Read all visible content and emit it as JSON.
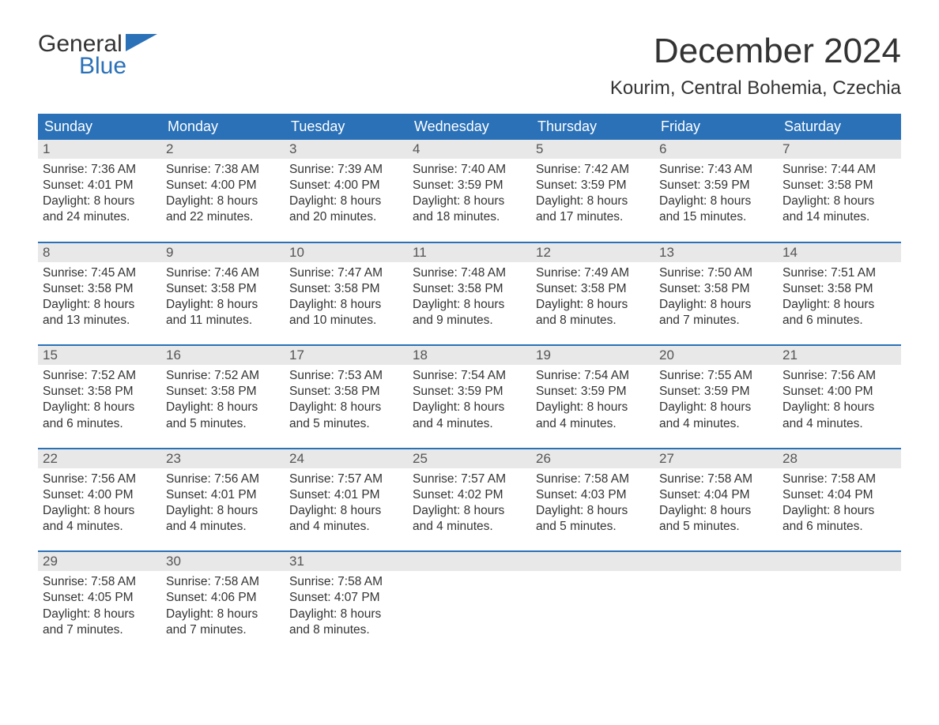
{
  "logo": {
    "word1": "General",
    "word2": "Blue",
    "icon_color": "#2a71b8"
  },
  "title": "December 2024",
  "location": "Kourim, Central Bohemia, Czechia",
  "colors": {
    "header_bg": "#2a71b8",
    "header_fg": "#ffffff",
    "daynum_bg": "#e8e8e8",
    "daynum_fg": "#555555",
    "body_fg": "#333333",
    "page_bg": "#ffffff"
  },
  "fonts": {
    "title_size": 44,
    "location_size": 24,
    "header_size": 18,
    "body_size": 15.5
  },
  "weekday_headers": [
    "Sunday",
    "Monday",
    "Tuesday",
    "Wednesday",
    "Thursday",
    "Friday",
    "Saturday"
  ],
  "weeks": [
    [
      {
        "n": "1",
        "sunrise": "Sunrise: 7:36 AM",
        "sunset": "Sunset: 4:01 PM",
        "d1": "Daylight: 8 hours",
        "d2": "and 24 minutes."
      },
      {
        "n": "2",
        "sunrise": "Sunrise: 7:38 AM",
        "sunset": "Sunset: 4:00 PM",
        "d1": "Daylight: 8 hours",
        "d2": "and 22 minutes."
      },
      {
        "n": "3",
        "sunrise": "Sunrise: 7:39 AM",
        "sunset": "Sunset: 4:00 PM",
        "d1": "Daylight: 8 hours",
        "d2": "and 20 minutes."
      },
      {
        "n": "4",
        "sunrise": "Sunrise: 7:40 AM",
        "sunset": "Sunset: 3:59 PM",
        "d1": "Daylight: 8 hours",
        "d2": "and 18 minutes."
      },
      {
        "n": "5",
        "sunrise": "Sunrise: 7:42 AM",
        "sunset": "Sunset: 3:59 PM",
        "d1": "Daylight: 8 hours",
        "d2": "and 17 minutes."
      },
      {
        "n": "6",
        "sunrise": "Sunrise: 7:43 AM",
        "sunset": "Sunset: 3:59 PM",
        "d1": "Daylight: 8 hours",
        "d2": "and 15 minutes."
      },
      {
        "n": "7",
        "sunrise": "Sunrise: 7:44 AM",
        "sunset": "Sunset: 3:58 PM",
        "d1": "Daylight: 8 hours",
        "d2": "and 14 minutes."
      }
    ],
    [
      {
        "n": "8",
        "sunrise": "Sunrise: 7:45 AM",
        "sunset": "Sunset: 3:58 PM",
        "d1": "Daylight: 8 hours",
        "d2": "and 13 minutes."
      },
      {
        "n": "9",
        "sunrise": "Sunrise: 7:46 AM",
        "sunset": "Sunset: 3:58 PM",
        "d1": "Daylight: 8 hours",
        "d2": "and 11 minutes."
      },
      {
        "n": "10",
        "sunrise": "Sunrise: 7:47 AM",
        "sunset": "Sunset: 3:58 PM",
        "d1": "Daylight: 8 hours",
        "d2": "and 10 minutes."
      },
      {
        "n": "11",
        "sunrise": "Sunrise: 7:48 AM",
        "sunset": "Sunset: 3:58 PM",
        "d1": "Daylight: 8 hours",
        "d2": "and 9 minutes."
      },
      {
        "n": "12",
        "sunrise": "Sunrise: 7:49 AM",
        "sunset": "Sunset: 3:58 PM",
        "d1": "Daylight: 8 hours",
        "d2": "and 8 minutes."
      },
      {
        "n": "13",
        "sunrise": "Sunrise: 7:50 AM",
        "sunset": "Sunset: 3:58 PM",
        "d1": "Daylight: 8 hours",
        "d2": "and 7 minutes."
      },
      {
        "n": "14",
        "sunrise": "Sunrise: 7:51 AM",
        "sunset": "Sunset: 3:58 PM",
        "d1": "Daylight: 8 hours",
        "d2": "and 6 minutes."
      }
    ],
    [
      {
        "n": "15",
        "sunrise": "Sunrise: 7:52 AM",
        "sunset": "Sunset: 3:58 PM",
        "d1": "Daylight: 8 hours",
        "d2": "and 6 minutes."
      },
      {
        "n": "16",
        "sunrise": "Sunrise: 7:52 AM",
        "sunset": "Sunset: 3:58 PM",
        "d1": "Daylight: 8 hours",
        "d2": "and 5 minutes."
      },
      {
        "n": "17",
        "sunrise": "Sunrise: 7:53 AM",
        "sunset": "Sunset: 3:58 PM",
        "d1": "Daylight: 8 hours",
        "d2": "and 5 minutes."
      },
      {
        "n": "18",
        "sunrise": "Sunrise: 7:54 AM",
        "sunset": "Sunset: 3:59 PM",
        "d1": "Daylight: 8 hours",
        "d2": "and 4 minutes."
      },
      {
        "n": "19",
        "sunrise": "Sunrise: 7:54 AM",
        "sunset": "Sunset: 3:59 PM",
        "d1": "Daylight: 8 hours",
        "d2": "and 4 minutes."
      },
      {
        "n": "20",
        "sunrise": "Sunrise: 7:55 AM",
        "sunset": "Sunset: 3:59 PM",
        "d1": "Daylight: 8 hours",
        "d2": "and 4 minutes."
      },
      {
        "n": "21",
        "sunrise": "Sunrise: 7:56 AM",
        "sunset": "Sunset: 4:00 PM",
        "d1": "Daylight: 8 hours",
        "d2": "and 4 minutes."
      }
    ],
    [
      {
        "n": "22",
        "sunrise": "Sunrise: 7:56 AM",
        "sunset": "Sunset: 4:00 PM",
        "d1": "Daylight: 8 hours",
        "d2": "and 4 minutes."
      },
      {
        "n": "23",
        "sunrise": "Sunrise: 7:56 AM",
        "sunset": "Sunset: 4:01 PM",
        "d1": "Daylight: 8 hours",
        "d2": "and 4 minutes."
      },
      {
        "n": "24",
        "sunrise": "Sunrise: 7:57 AM",
        "sunset": "Sunset: 4:01 PM",
        "d1": "Daylight: 8 hours",
        "d2": "and 4 minutes."
      },
      {
        "n": "25",
        "sunrise": "Sunrise: 7:57 AM",
        "sunset": "Sunset: 4:02 PM",
        "d1": "Daylight: 8 hours",
        "d2": "and 4 minutes."
      },
      {
        "n": "26",
        "sunrise": "Sunrise: 7:58 AM",
        "sunset": "Sunset: 4:03 PM",
        "d1": "Daylight: 8 hours",
        "d2": "and 5 minutes."
      },
      {
        "n": "27",
        "sunrise": "Sunrise: 7:58 AM",
        "sunset": "Sunset: 4:04 PM",
        "d1": "Daylight: 8 hours",
        "d2": "and 5 minutes."
      },
      {
        "n": "28",
        "sunrise": "Sunrise: 7:58 AM",
        "sunset": "Sunset: 4:04 PM",
        "d1": "Daylight: 8 hours",
        "d2": "and 6 minutes."
      }
    ],
    [
      {
        "n": "29",
        "sunrise": "Sunrise: 7:58 AM",
        "sunset": "Sunset: 4:05 PM",
        "d1": "Daylight: 8 hours",
        "d2": "and 7 minutes."
      },
      {
        "n": "30",
        "sunrise": "Sunrise: 7:58 AM",
        "sunset": "Sunset: 4:06 PM",
        "d1": "Daylight: 8 hours",
        "d2": "and 7 minutes."
      },
      {
        "n": "31",
        "sunrise": "Sunrise: 7:58 AM",
        "sunset": "Sunset: 4:07 PM",
        "d1": "Daylight: 8 hours",
        "d2": "and 8 minutes."
      },
      null,
      null,
      null,
      null
    ]
  ]
}
